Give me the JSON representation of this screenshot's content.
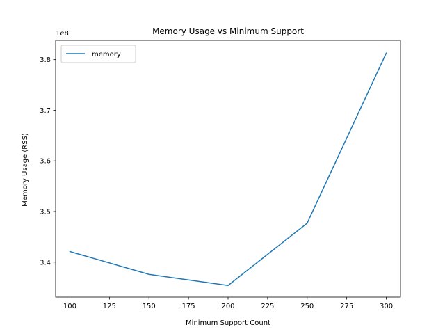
{
  "chart_data": {
    "type": "line",
    "title": "Memory Usage vs Minimum Support",
    "xlabel": "Minimum Support Count",
    "ylabel": "Memory Usage (RSS)",
    "y_offset_label": "1e8",
    "y_scale_factor": 100000000,
    "xlim": [
      91,
      309
    ],
    "ylim": [
      3.331,
      3.838
    ],
    "x_ticks": [
      100,
      125,
      150,
      175,
      200,
      225,
      250,
      275,
      300
    ],
    "y_ticks": [
      3.4,
      3.5,
      3.6,
      3.7,
      3.8
    ],
    "y_tick_labels": [
      "3.4",
      "3.5",
      "3.6",
      "3.7",
      "3.8"
    ],
    "grid": false,
    "legend_position": "top-left",
    "series": [
      {
        "name": "memory",
        "color": "#1f77b4",
        "x": [
          100,
          150,
          200,
          250,
          300
        ],
        "y": [
          3.421,
          3.376,
          3.354,
          3.477,
          3.813
        ]
      }
    ]
  }
}
